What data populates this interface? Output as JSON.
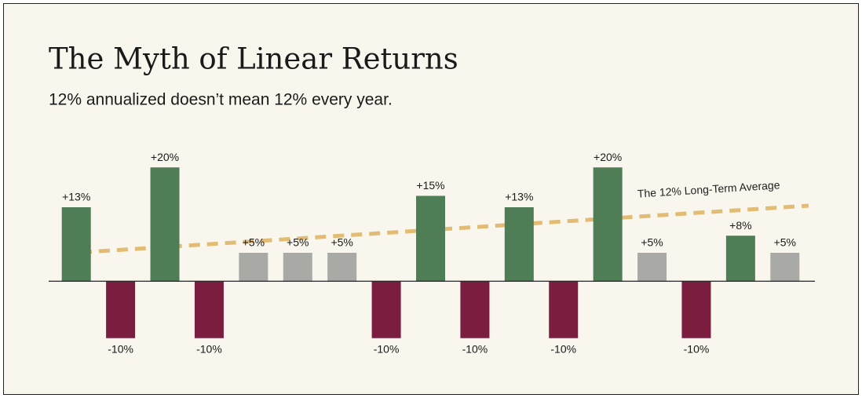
{
  "chart_data": {
    "type": "bar",
    "title": "The Myth of Linear Returns",
    "subtitle": "12% annualized doesn’t mean 12% every year.",
    "annotation": "The 12% Long-Term Average",
    "categories": [
      null,
      null,
      null,
      null,
      null,
      null,
      null,
      null,
      null,
      null,
      null,
      null,
      null,
      null,
      null,
      null,
      null
    ],
    "values": [
      13,
      -10,
      20,
      -10,
      5,
      5,
      5,
      -10,
      15,
      -10,
      13,
      -10,
      20,
      5,
      -10,
      8,
      5
    ],
    "value_labels": [
      "+13%",
      "-10%",
      "+20%",
      "-10%",
      "+5%",
      "+5%",
      "+5%",
      "-10%",
      "+15%",
      "-10%",
      "+13%",
      "-10%",
      "+20%",
      "+5%",
      "-10%",
      "+8%",
      "+5%"
    ],
    "colors": [
      "#4f7d56",
      "#7a1d3f",
      "#4f7d56",
      "#7a1d3f",
      "#a9a9a6",
      "#a9a9a6",
      "#a9a9a6",
      "#7a1d3f",
      "#4f7d56",
      "#7a1d3f",
      "#4f7d56",
      "#7a1d3f",
      "#4f7d56",
      "#a9a9a6",
      "#7a1d3f",
      "#4f7d56",
      "#a9a9a6"
    ],
    "ylim": [
      -15,
      25
    ]
  }
}
